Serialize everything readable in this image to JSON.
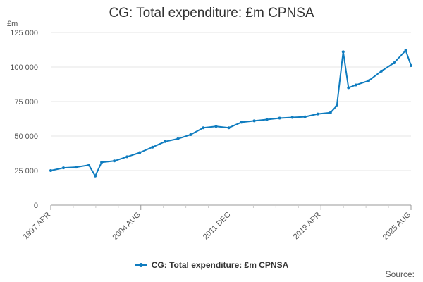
{
  "chart_data": {
    "type": "line",
    "title": "CG: Total expenditure: £m CPNSA",
    "ylabel": "£m",
    "xlabel": "",
    "ylim": [
      0,
      125000
    ],
    "yticks": [
      {
        "value": 0,
        "label": "0"
      },
      {
        "value": 25000,
        "label": "25 000"
      },
      {
        "value": 50000,
        "label": "50 000"
      },
      {
        "value": 75000,
        "label": "75 000"
      },
      {
        "value": 100000,
        "label": "100 000"
      },
      {
        "value": 125000,
        "label": "125 000"
      }
    ],
    "xrange": [
      "1997-04",
      "2025-08"
    ],
    "xticks": [
      "1997 APR",
      "2004 AUG",
      "2011 DEC",
      "2019 APR",
      "2025 AUG"
    ],
    "grid": true,
    "legend_position": "bottom",
    "series": [
      {
        "name": "CG: Total expenditure: £m CPNSA",
        "color": "#0f7cbf",
        "x": [
          "1997-04",
          "1998-04",
          "1999-04",
          "2000-04",
          "2000-10",
          "2001-04",
          "2002-04",
          "2003-04",
          "2004-04",
          "2005-04",
          "2006-04",
          "2007-04",
          "2008-04",
          "2009-04",
          "2010-04",
          "2011-04",
          "2012-04",
          "2013-04",
          "2014-04",
          "2015-04",
          "2016-04",
          "2017-04",
          "2018-04",
          "2019-04",
          "2019-10",
          "2020-04",
          "2020-09",
          "2021-04",
          "2022-04",
          "2023-04",
          "2024-04",
          "2025-03",
          "2025-08"
        ],
        "values": [
          25000,
          27000,
          27500,
          29000,
          21000,
          31000,
          32000,
          35000,
          38000,
          42000,
          46000,
          48000,
          51000,
          56000,
          57000,
          56000,
          60000,
          61000,
          62000,
          63000,
          63500,
          64000,
          66000,
          67000,
          72000,
          111000,
          85000,
          87000,
          90000,
          97000,
          103000,
          112000,
          101000
        ]
      }
    ]
  },
  "source_label": "Source:"
}
